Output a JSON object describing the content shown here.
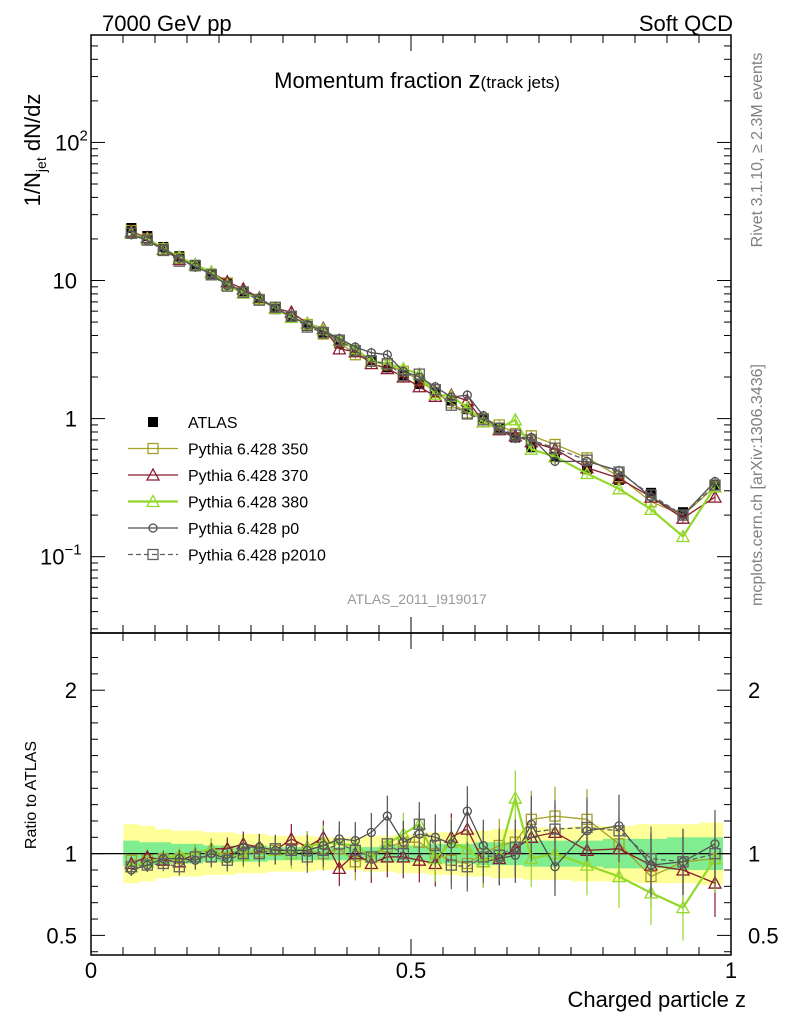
{
  "header": {
    "left": "7000 GeV pp",
    "right": "Soft QCD"
  },
  "plot": {
    "title_main": "Momentum fraction ",
    "title_z": "z",
    "title_sub": "(track jets)",
    "ylabel_main": "1/N",
    "ylabel_sub": "jet",
    "ylabel_rest": " dN/dz",
    "ratio_ylabel": "Ratio to ATLAS",
    "xlabel": "Charged particle z",
    "watermark": "ATLAS_2011_I919017"
  },
  "side_text": {
    "upper": "Rivet 3.1.10, ≥ 2.3M events",
    "lower": "mcplots.cern.ch [arXiv:1306.3436]"
  },
  "ticks": {
    "main_y": [
      {
        "value": 0.1,
        "base": "10",
        "exp": "−1"
      },
      {
        "value": 1,
        "base": "1",
        "exp": ""
      },
      {
        "value": 10,
        "base": "10",
        "exp": ""
      },
      {
        "value": 100,
        "base": "10",
        "exp": "2"
      }
    ],
    "ratio_y": [
      {
        "value": 0.5,
        "label": "0.5"
      },
      {
        "value": 1,
        "label": "1"
      },
      {
        "value": 2,
        "label": "2"
      }
    ],
    "x": [
      {
        "value": 0,
        "label": "0"
      },
      {
        "value": 0.5,
        "label": "0.5"
      },
      {
        "value": 1,
        "label": "1"
      }
    ]
  },
  "colors": {
    "atlas": "#000000",
    "p350": "#A5A026",
    "p370": "#8B1A2E",
    "p380": "#92D82A",
    "p0": "#505050",
    "p2010": "#606060",
    "band_yellow": "#FFFF99",
    "band_green": "#80EE90"
  },
  "chart_data": [
    {
      "type": "line",
      "scale_y": "log",
      "xlim": [
        0,
        1.0
      ],
      "ylim": [
        0.028,
        600
      ],
      "x": [
        0.063,
        0.088,
        0.113,
        0.138,
        0.163,
        0.188,
        0.213,
        0.238,
        0.263,
        0.288,
        0.313,
        0.338,
        0.363,
        0.388,
        0.413,
        0.438,
        0.463,
        0.488,
        0.513,
        0.538,
        0.563,
        0.588,
        0.613,
        0.638,
        0.663,
        0.688,
        0.725,
        0.775,
        0.825,
        0.875,
        0.925,
        0.975
      ],
      "legend": {
        "placement": "lower-left"
      },
      "series": [
        {
          "name": "ATLAS",
          "marker": "filled-square",
          "values": [
            24,
            21,
            17.5,
            15,
            13,
            11.2,
            9.5,
            8.2,
            7.2,
            6.2,
            5.4,
            4.7,
            4.1,
            3.5,
            3.05,
            2.65,
            2.35,
            2.05,
            1.78,
            1.55,
            1.35,
            1.17,
            1.0,
            0.86,
            0.73,
            0.62,
            0.53,
            0.43,
            0.36,
            0.29,
            0.21,
            0.33
          ]
        },
        {
          "name": "Pythia 6.428 350",
          "marker": "open-square",
          "values": [
            23,
            20,
            17,
            14.5,
            12.8,
            11,
            9.6,
            8.3,
            7.3,
            6.3,
            5.5,
            4.8,
            4.1,
            3.6,
            2.9,
            2.6,
            2.45,
            2.2,
            1.9,
            1.55,
            1.3,
            1.1,
            1.0,
            0.9,
            0.78,
            0.75,
            0.65,
            0.52,
            0.38,
            0.25,
            0.2,
            0.32
          ]
        },
        {
          "name": "Pythia 6.428 370",
          "marker": "open-triangle",
          "values": [
            22.5,
            20.5,
            16.8,
            14.2,
            13,
            11.5,
            9.8,
            8.7,
            7.5,
            6.3,
            5.9,
            4.9,
            4.5,
            3.2,
            3.05,
            2.5,
            2.3,
            2.0,
            1.7,
            1.45,
            1.48,
            1.35,
            0.95,
            0.83,
            0.75,
            0.68,
            0.6,
            0.44,
            0.37,
            0.27,
            0.19,
            0.27
          ]
        },
        {
          "name": "Pythia 6.428 380",
          "marker": "open-triangle",
          "values": [
            22,
            20,
            17,
            14.8,
            13,
            11.5,
            9.3,
            8.1,
            7.4,
            6.3,
            5.4,
            4.9,
            4.4,
            3.7,
            3.2,
            2.6,
            2.5,
            2.3,
            2.1,
            1.5,
            1.45,
            1.2,
            0.95,
            0.85,
            0.98,
            0.6,
            0.53,
            0.4,
            0.31,
            0.22,
            0.14,
            0.32
          ]
        },
        {
          "name": "Pythia 6.428 p0",
          "marker": "open-circle",
          "values": [
            21.5,
            19.5,
            17,
            14.5,
            12.5,
            11.2,
            9.2,
            8.5,
            7.5,
            6.3,
            5.5,
            4.8,
            4.3,
            3.8,
            3.3,
            3.0,
            2.9,
            2.2,
            2.0,
            1.7,
            1.43,
            1.48,
            1.05,
            0.83,
            0.72,
            0.73,
            0.49,
            0.49,
            0.42,
            0.27,
            0.2,
            0.35
          ]
        },
        {
          "name": "Pythia 6.428 p2010",
          "marker": "open-square-dashed",
          "values": [
            22,
            19.6,
            16.5,
            13.8,
            12.8,
            11,
            9.1,
            8.2,
            7.2,
            6.4,
            5.5,
            4.6,
            4.2,
            3.7,
            3.1,
            2.6,
            2.5,
            2.05,
            2.1,
            1.62,
            1.25,
            1.08,
            0.98,
            0.85,
            0.76,
            0.7,
            0.61,
            0.5,
            0.41,
            0.28,
            0.2,
            0.33
          ]
        }
      ]
    },
    {
      "type": "line",
      "xlim": [
        0,
        1.0
      ],
      "ylim": [
        0.38,
        2.35
      ],
      "ylabel": "Ratio to ATLAS",
      "xlabel": "Charged particle z",
      "band_yellow": {
        "lo": [
          0.82,
          0.83,
          0.85,
          0.86,
          0.86,
          0.87,
          0.87,
          0.88,
          0.88,
          0.89,
          0.89,
          0.89,
          0.9,
          0.9,
          0.9,
          0.89,
          0.89,
          0.88,
          0.88,
          0.87,
          0.87,
          0.86,
          0.86,
          0.85,
          0.85,
          0.84,
          0.84,
          0.83,
          0.83,
          0.82,
          0.82,
          0.81
        ],
        "hi": [
          1.18,
          1.17,
          1.15,
          1.14,
          1.14,
          1.13,
          1.13,
          1.12,
          1.12,
          1.11,
          1.11,
          1.11,
          1.1,
          1.1,
          1.1,
          1.11,
          1.11,
          1.12,
          1.12,
          1.13,
          1.13,
          1.14,
          1.14,
          1.15,
          1.15,
          1.16,
          1.16,
          1.17,
          1.17,
          1.18,
          1.18,
          1.19
        ]
      },
      "band_green": {
        "lo": [
          0.92,
          0.93,
          0.93,
          0.94,
          0.94,
          0.95,
          0.95,
          0.95,
          0.95,
          0.96,
          0.96,
          0.96,
          0.96,
          0.96,
          0.96,
          0.96,
          0.95,
          0.95,
          0.95,
          0.94,
          0.94,
          0.94,
          0.93,
          0.93,
          0.93,
          0.92,
          0.92,
          0.92,
          0.91,
          0.91,
          0.9,
          0.9
        ],
        "hi": [
          1.08,
          1.07,
          1.07,
          1.06,
          1.06,
          1.05,
          1.05,
          1.05,
          1.05,
          1.04,
          1.04,
          1.04,
          1.04,
          1.04,
          1.04,
          1.04,
          1.05,
          1.05,
          1.05,
          1.06,
          1.06,
          1.06,
          1.07,
          1.07,
          1.07,
          1.08,
          1.08,
          1.08,
          1.09,
          1.09,
          1.1,
          1.1
        ]
      },
      "series": [
        {
          "name": "Pythia 6.428 350",
          "values": [
            0.96,
            0.96,
            0.97,
            0.97,
            0.98,
            0.98,
            1.01,
            1.01,
            1.01,
            1.02,
            1.02,
            1.02,
            1.0,
            1.03,
            0.95,
            0.98,
            1.04,
            1.07,
            1.07,
            1.0,
            0.96,
            0.94,
            1.0,
            1.05,
            1.07,
            1.21,
            1.23,
            1.21,
            1.06,
            0.86,
            0.95,
            0.97
          ]
        },
        {
          "name": "Pythia 6.428 370",
          "values": [
            0.94,
            0.98,
            0.96,
            0.95,
            1.0,
            1.03,
            1.03,
            1.06,
            1.04,
            1.02,
            1.09,
            1.04,
            1.1,
            0.91,
            1.0,
            0.94,
            0.98,
            0.98,
            0.96,
            0.94,
            1.1,
            1.15,
            0.95,
            0.97,
            1.03,
            1.1,
            1.13,
            1.02,
            1.03,
            0.93,
            0.9,
            0.82
          ]
        },
        {
          "name": "Pythia 6.428 380",
          "values": [
            0.92,
            0.95,
            0.97,
            0.99,
            1.0,
            1.03,
            0.98,
            0.99,
            1.03,
            1.02,
            1.0,
            1.04,
            1.07,
            1.06,
            1.05,
            0.98,
            1.06,
            1.12,
            1.18,
            0.97,
            1.07,
            1.03,
            0.95,
            0.99,
            1.34,
            0.97,
            1.0,
            0.93,
            0.86,
            0.76,
            0.67,
            0.97
          ]
        },
        {
          "name": "Pythia 6.428 p0",
          "values": [
            0.9,
            0.93,
            0.97,
            0.97,
            0.96,
            1.0,
            0.97,
            1.04,
            1.04,
            1.02,
            1.02,
            1.02,
            1.05,
            1.09,
            1.08,
            1.13,
            1.23,
            1.07,
            1.12,
            1.1,
            1.06,
            1.26,
            1.05,
            0.97,
            0.99,
            1.18,
            0.92,
            1.14,
            1.17,
            0.93,
            0.95,
            1.06
          ]
        },
        {
          "name": "Pythia 6.428 p2010",
          "values": [
            0.92,
            0.93,
            0.94,
            0.92,
            0.98,
            0.98,
            0.96,
            1.0,
            1.0,
            1.03,
            1.02,
            0.98,
            1.02,
            1.06,
            1.02,
            0.98,
            1.06,
            1.0,
            1.18,
            1.05,
            0.93,
            0.92,
            0.98,
            0.99,
            1.04,
            1.13,
            1.15,
            1.16,
            1.14,
            0.97,
            0.95,
            1.0
          ]
        }
      ]
    }
  ]
}
